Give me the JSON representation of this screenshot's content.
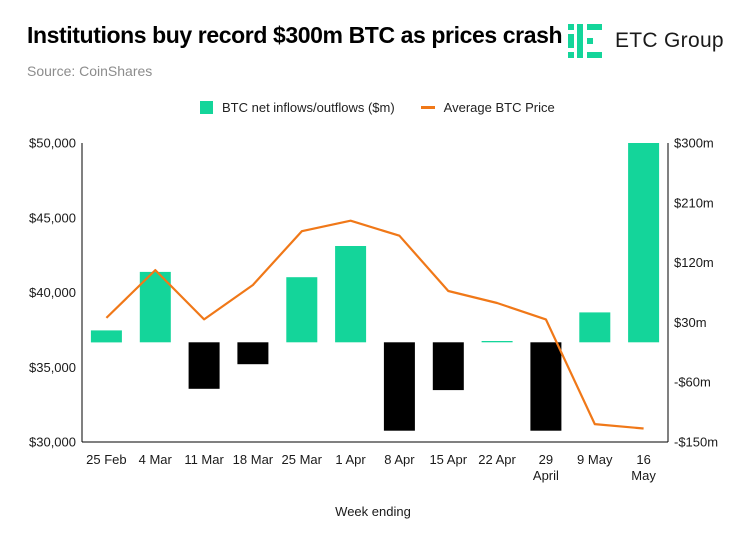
{
  "header": {
    "title": "Institutions buy record $300m BTC as prices crash",
    "source": "Source: CoinShares",
    "logo_text": "ETC Group"
  },
  "colors": {
    "inflow": "#14d59a",
    "outflow": "#000000",
    "price_line": "#f07818",
    "axis": "#000000",
    "logo_green": "#14d59a"
  },
  "chart_data": {
    "type": "bar+line",
    "title": "Institutions buy record $300m BTC as prices crash",
    "xlabel": "Week ending",
    "categories": [
      "25 Feb",
      "4 Mar",
      "11 Mar",
      "18 Mar",
      "25 Mar",
      "1 Apr",
      "8 Apr",
      "15 Apr",
      "22 Apr",
      "29 April",
      "9 May",
      "16 May"
    ],
    "series": [
      {
        "name": "BTC net inflows/outflows ($m)",
        "type": "bar",
        "axis": "right",
        "values": [
          18,
          106,
          -70,
          -33,
          98,
          145,
          -133,
          -72,
          2,
          -133,
          45,
          300
        ]
      },
      {
        "name": "Average BTC Price",
        "type": "line",
        "axis": "left",
        "values": [
          38300,
          41500,
          38200,
          40500,
          44100,
          44800,
          43800,
          40100,
          39300,
          38200,
          31200,
          30900
        ]
      }
    ],
    "left_axis": {
      "ylim": [
        30000,
        50000
      ],
      "ticks": [
        30000,
        35000,
        40000,
        45000,
        50000
      ],
      "tick_labels": [
        "$30,000",
        "$35,000",
        "$40,000",
        "$45,000",
        "$50,000"
      ]
    },
    "right_axis": {
      "ylim": [
        -150,
        300
      ],
      "ticks": [
        -150,
        -60,
        30,
        120,
        210,
        300
      ],
      "tick_labels": [
        "-$150m",
        "-$60m",
        "$30m",
        "$120m",
        "$210m",
        "$300m"
      ]
    },
    "legend_position": "top-center"
  }
}
